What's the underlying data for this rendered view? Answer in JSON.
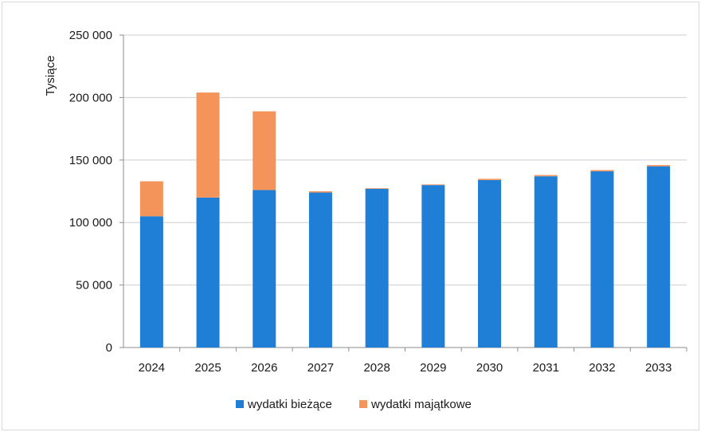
{
  "chart_data": {
    "type": "bar",
    "stacked": true,
    "categories": [
      "2024",
      "2025",
      "2026",
      "2027",
      "2028",
      "2029",
      "2030",
      "2031",
      "2032",
      "2033"
    ],
    "series": [
      {
        "name": "wydatki bieżące",
        "color": "#1f7fd6",
        "values": [
          105000,
          120000,
          126000,
          124000,
          127000,
          130000,
          134000,
          137000,
          141000,
          145000
        ]
      },
      {
        "name": "wydatki majątkowe",
        "color": "#f4935a",
        "values": [
          28000,
          84000,
          63000,
          1000,
          500,
          500,
          1000,
          1000,
          1000,
          1000
        ]
      }
    ],
    "ylabel": "Tysiące",
    "xlabel": "",
    "ylim": [
      0,
      250000
    ],
    "yticks": [
      "0",
      "50 000",
      "100 000",
      "150 000",
      "200 000",
      "250 000"
    ],
    "grid": true,
    "legend": "bottom"
  }
}
